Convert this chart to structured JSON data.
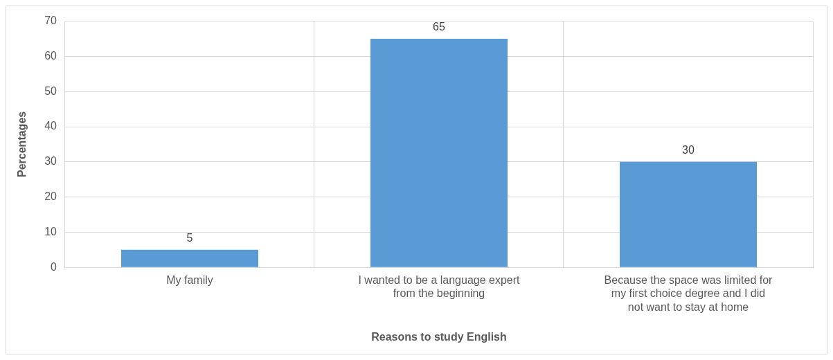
{
  "chart_data": {
    "type": "bar",
    "xlabel": "Reasons to study English",
    "ylabel": "Percentages",
    "categories": [
      "My family",
      "I wanted to be a language expert from the beginning",
      "Because the space was limited for my first choice degree and I did not want to stay at home"
    ],
    "values": [
      5,
      65,
      30
    ],
    "color": "#5b9bd5",
    "ylim": [
      0,
      70
    ],
    "yticks": [
      0,
      10,
      20,
      30,
      40,
      50,
      60,
      70
    ],
    "grid": true,
    "data_labels": true
  }
}
